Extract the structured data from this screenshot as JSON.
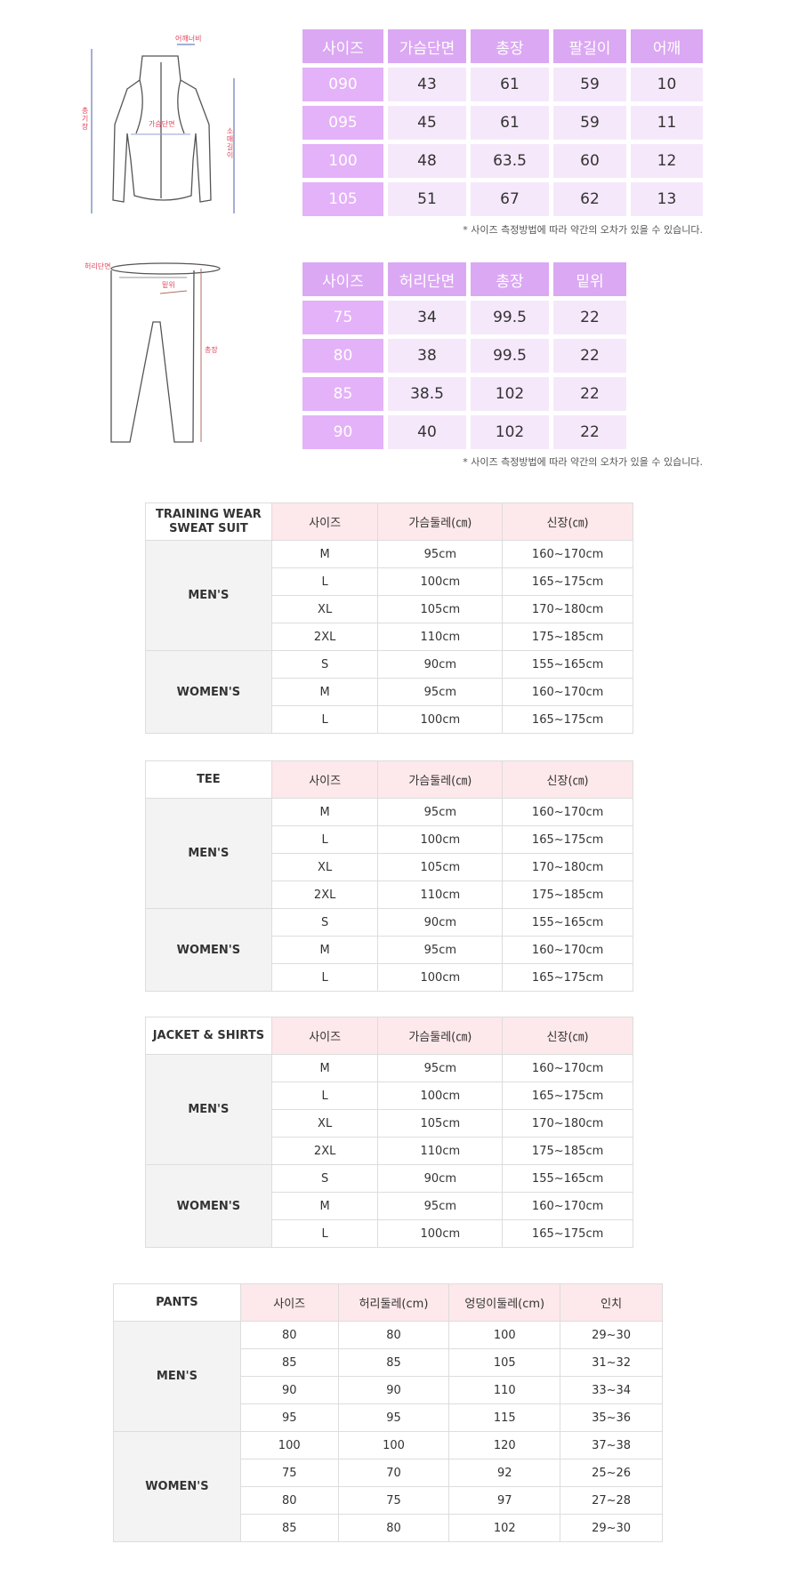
{
  "jacket": {
    "labels": {
      "shoulder": "어깨너비",
      "total": "총기장",
      "chest": "가슴단면",
      "sleeve": "소매길이"
    },
    "headers": [
      "사이즈",
      "가슴단면",
      "총장",
      "팔길이",
      "어깨"
    ],
    "rows": [
      [
        "090",
        "43",
        "61",
        "59",
        "10"
      ],
      [
        "095",
        "45",
        "61",
        "59",
        "11"
      ],
      [
        "100",
        "48",
        "63.5",
        "60",
        "12"
      ],
      [
        "105",
        "51",
        "67",
        "62",
        "13"
      ]
    ],
    "note": "* 사이즈 측정방법에 따라 약간의 오차가 있을 수 있습니다."
  },
  "pants_diagram": {
    "labels": {
      "waist": "허리단면",
      "rise": "밑위",
      "length": "총장"
    },
    "headers": [
      "사이즈",
      "허리단면",
      "총장",
      "밑위"
    ],
    "rows": [
      [
        "75",
        "34",
        "99.5",
        "22"
      ],
      [
        "80",
        "38",
        "99.5",
        "22"
      ],
      [
        "85",
        "38.5",
        "102",
        "22"
      ],
      [
        "90",
        "40",
        "102",
        "22"
      ]
    ],
    "note": "* 사이즈 측정방법에 따라 약간의 오차가 있을 수 있습니다."
  },
  "colors": {
    "purple_header": "#dba8f3",
    "purple_key": "#e4b2f8",
    "purple_cell": "#f6e8fb",
    "pink_header": "#fde8eb",
    "group_bg": "#f3f3f3"
  },
  "tables": [
    {
      "title": "TRAINING WEAR\nSWEAT SUIT",
      "headers": [
        "사이즈",
        "가슴둘레(㎝)",
        "신장(㎝)"
      ],
      "groups": [
        {
          "name": "MEN'S",
          "rows": [
            [
              "M",
              "95cm",
              "160~170cm"
            ],
            [
              "L",
              "100cm",
              "165~175cm"
            ],
            [
              "XL",
              "105cm",
              "170~180cm"
            ],
            [
              "2XL",
              "110cm",
              "175~185cm"
            ]
          ]
        },
        {
          "name": "WOMEN'S",
          "rows": [
            [
              "S",
              "90cm",
              "155~165cm"
            ],
            [
              "M",
              "95cm",
              "160~170cm"
            ],
            [
              "L",
              "100cm",
              "165~175cm"
            ]
          ]
        }
      ]
    },
    {
      "title": "TEE",
      "headers": [
        "사이즈",
        "가슴둘레(㎝)",
        "신장(㎝)"
      ],
      "groups": [
        {
          "name": "MEN'S",
          "rows": [
            [
              "M",
              "95cm",
              "160~170cm"
            ],
            [
              "L",
              "100cm",
              "165~175cm"
            ],
            [
              "XL",
              "105cm",
              "170~180cm"
            ],
            [
              "2XL",
              "110cm",
              "175~185cm"
            ]
          ]
        },
        {
          "name": "WOMEN'S",
          "rows": [
            [
              "S",
              "90cm",
              "155~165cm"
            ],
            [
              "M",
              "95cm",
              "160~170cm"
            ],
            [
              "L",
              "100cm",
              "165~175cm"
            ]
          ]
        }
      ]
    },
    {
      "title": "JACKET & SHIRTS",
      "headers": [
        "사이즈",
        "가슴둘레(㎝)",
        "신장(㎝)"
      ],
      "groups": [
        {
          "name": "MEN'S",
          "rows": [
            [
              "M",
              "95cm",
              "160~170cm"
            ],
            [
              "L",
              "100cm",
              "165~175cm"
            ],
            [
              "XL",
              "105cm",
              "170~180cm"
            ],
            [
              "2XL",
              "110cm",
              "175~185cm"
            ]
          ]
        },
        {
          "name": "WOMEN'S",
          "rows": [
            [
              "S",
              "90cm",
              "155~165cm"
            ],
            [
              "M",
              "95cm",
              "160~170cm"
            ],
            [
              "L",
              "100cm",
              "165~175cm"
            ]
          ]
        }
      ]
    },
    {
      "title": "PANTS",
      "headers": [
        "사이즈",
        "허리둘레(cm)",
        "엉덩이둘레(cm)",
        "인치"
      ],
      "groups": [
        {
          "name": "MEN'S",
          "rows": [
            [
              "80",
              "80",
              "100",
              "29~30"
            ],
            [
              "85",
              "85",
              "105",
              "31~32"
            ],
            [
              "90",
              "90",
              "110",
              "33~34"
            ],
            [
              "95",
              "95",
              "115",
              "35~36"
            ]
          ]
        },
        {
          "name": "WOMEN'S",
          "rows": [
            [
              "100",
              "100",
              "120",
              "37~38"
            ],
            [
              "75",
              "70",
              "92",
              "25~26"
            ],
            [
              "80",
              "75",
              "97",
              "27~28"
            ],
            [
              "85",
              "80",
              "102",
              "29~30"
            ]
          ]
        }
      ]
    }
  ]
}
